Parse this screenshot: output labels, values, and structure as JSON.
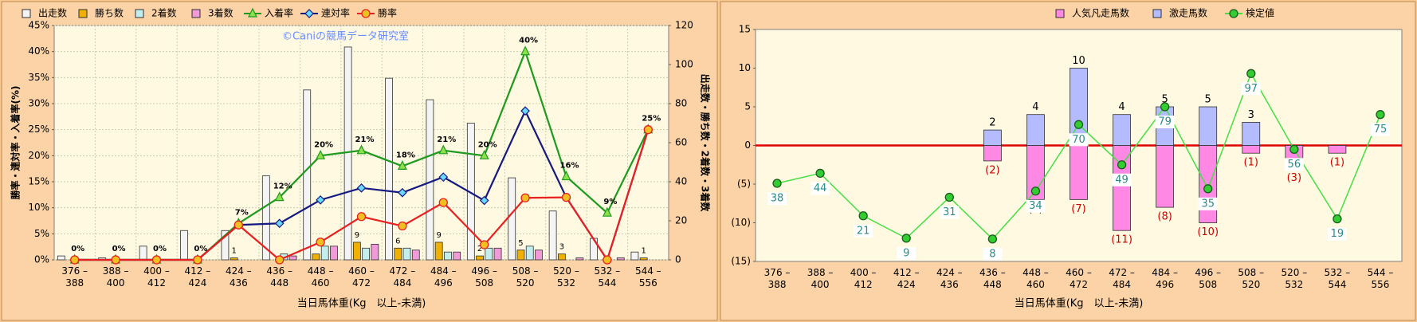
{
  "chart_data": [
    {
      "type": "combo",
      "annotation": "©Caniの競馬データ研究室",
      "x_label": "当日馬体重(Kg　以上-未満)",
      "y_label": "勝率・連対率・入着率(%)",
      "y2_label": "出走数・勝ち数・2着数・3着数",
      "legend": "top",
      "grid": true,
      "bar_layout": "grouped",
      "categories": [
        "376 –\n388",
        "388 –\n400",
        "400 –\n412",
        "412 –\n424",
        "424 –\n436",
        "436 –\n448",
        "448 –\n460",
        "460 –\n472",
        "472 –\n484",
        "484 –\n496",
        "496 –\n508",
        "508 –\n520",
        "520 –\n532",
        "532 –\n544",
        "544 –\n556"
      ],
      "ylim": [
        0,
        45
      ],
      "yticks": [
        {
          "value": 0,
          "label": "0%"
        },
        {
          "value": 5,
          "label": "5%"
        },
        {
          "value": 10,
          "label": "10%"
        },
        {
          "value": 15,
          "label": "15%"
        },
        {
          "value": 20,
          "label": "20%"
        },
        {
          "value": 25,
          "label": "25%"
        },
        {
          "value": 30,
          "label": "30%"
        },
        {
          "value": 35,
          "label": "35%"
        },
        {
          "value": 40,
          "label": "40%"
        },
        {
          "value": 45,
          "label": "45%"
        }
      ],
      "y2lim": [
        0,
        120
      ],
      "y2ticks": [
        0,
        20,
        40,
        60,
        80,
        100,
        120
      ],
      "series": [
        {
          "name": "出走数",
          "kind": "bar",
          "axis": "y2",
          "color": "#f4f4f4",
          "values": [
            2,
            1,
            7,
            15,
            15,
            43,
            87,
            109,
            93,
            82,
            70,
            42,
            25,
            11,
            4
          ]
        },
        {
          "name": "勝ち数",
          "kind": "bar",
          "axis": "y2",
          "color": "#f0b000",
          "values": [
            0,
            0,
            0,
            0,
            1,
            0,
            3,
            9,
            6,
            9,
            2,
            5,
            3,
            0,
            1
          ],
          "value_labels": [
            null,
            null,
            null,
            null,
            "1",
            null,
            null,
            "9",
            "6",
            "9",
            "2",
            "5",
            "3",
            null,
            "1"
          ]
        },
        {
          "name": "2着数",
          "kind": "bar",
          "axis": "y2",
          "color": "#c4eeee",
          "values": [
            0,
            0,
            0,
            0,
            0,
            3,
            7,
            6,
            6,
            4,
            6,
            7,
            0,
            0,
            0
          ]
        },
        {
          "name": "3着数",
          "kind": "bar",
          "axis": "y2",
          "color": "#f09ad8",
          "values": [
            0,
            0,
            0,
            0,
            0,
            2,
            7,
            8,
            5,
            4,
            6,
            5,
            1,
            1,
            0
          ]
        },
        {
          "name": "入着率",
          "kind": "line",
          "marker": "triangle",
          "color": "#1e9a1e",
          "values": [
            0,
            0,
            0,
            0,
            7,
            12,
            20,
            21,
            18,
            21,
            20,
            40,
            16,
            9,
            25
          ],
          "value_labels": [
            "0%",
            "0%",
            "0%",
            "0%",
            "7%",
            "12%",
            "20%",
            "21%",
            "18%",
            "21%",
            "20%",
            "40%",
            "16%",
            "9%",
            "25%"
          ]
        },
        {
          "name": "連対率",
          "kind": "line",
          "marker": "diamond",
          "color": "#141a80",
          "values": [
            0,
            0,
            0,
            0,
            6.7,
            7,
            11.5,
            13.8,
            12.9,
            15.9,
            11.4,
            28.6,
            12,
            0,
            25
          ]
        },
        {
          "name": "勝率",
          "kind": "line",
          "marker": "circle",
          "color": "#e82020",
          "values": [
            0,
            0,
            0,
            0,
            6.7,
            0,
            3.4,
            8.3,
            6.5,
            11,
            2.9,
            11.9,
            12,
            0,
            25
          ]
        }
      ]
    },
    {
      "type": "combo",
      "x_label": "当日馬体重(Kg　以上-未満)",
      "legend": "top",
      "grid": false,
      "bar_layout": "overlap",
      "baseline_color": "#e00000",
      "categories": [
        "376 –\n388",
        "388 –\n400",
        "400 –\n412",
        "412 –\n424",
        "424 –\n436",
        "436 –\n448",
        "448 –\n460",
        "460 –\n472",
        "472 –\n484",
        "484 –\n496",
        "496 –\n508",
        "508 –\n520",
        "520 –\n532",
        "532 –\n544",
        "544 –\n556"
      ],
      "ylim": [
        -15,
        15
      ],
      "yticks": [
        {
          "value": -15,
          "label": "(15)"
        },
        {
          "value": -10,
          "label": "(10)"
        },
        {
          "value": -5,
          "label": "(5)"
        },
        0,
        5,
        10,
        15
      ],
      "series": [
        {
          "name": "人気凡走馬数",
          "kind": "bar",
          "color": "#ff88e4",
          "label_color": "#d00000",
          "values": [
            null,
            null,
            null,
            null,
            null,
            -2,
            -7,
            -7,
            -11,
            -8,
            -10,
            -1,
            -3,
            -1,
            null
          ],
          "value_labels": [
            null,
            null,
            null,
            null,
            null,
            "(2)",
            "(7)",
            "(7)",
            "(11)",
            "(8)",
            "(10)",
            "(1)",
            "(3)",
            "(1)",
            null
          ]
        },
        {
          "name": "激走馬数",
          "kind": "bar",
          "color": "#b4bcff",
          "label_color": "#000000",
          "data_labels": true,
          "values": [
            null,
            null,
            null,
            null,
            null,
            2,
            4,
            10,
            4,
            5,
            5,
            3,
            null,
            null,
            null
          ]
        },
        {
          "name": "検定値",
          "kind": "line",
          "marker": "circle",
          "color": "#44e044",
          "values": [
            -4.9,
            -3.6,
            -9.1,
            -12,
            -6.7,
            -12.1,
            -5.9,
            2.7,
            -2.5,
            5,
            -5.6,
            9.3,
            -0.5,
            -9.5,
            4
          ],
          "point_labels": [
            38,
            44,
            21,
            9,
            31,
            8,
            34,
            70,
            49,
            79,
            35,
            97,
            56,
            19,
            75
          ]
        }
      ]
    }
  ]
}
